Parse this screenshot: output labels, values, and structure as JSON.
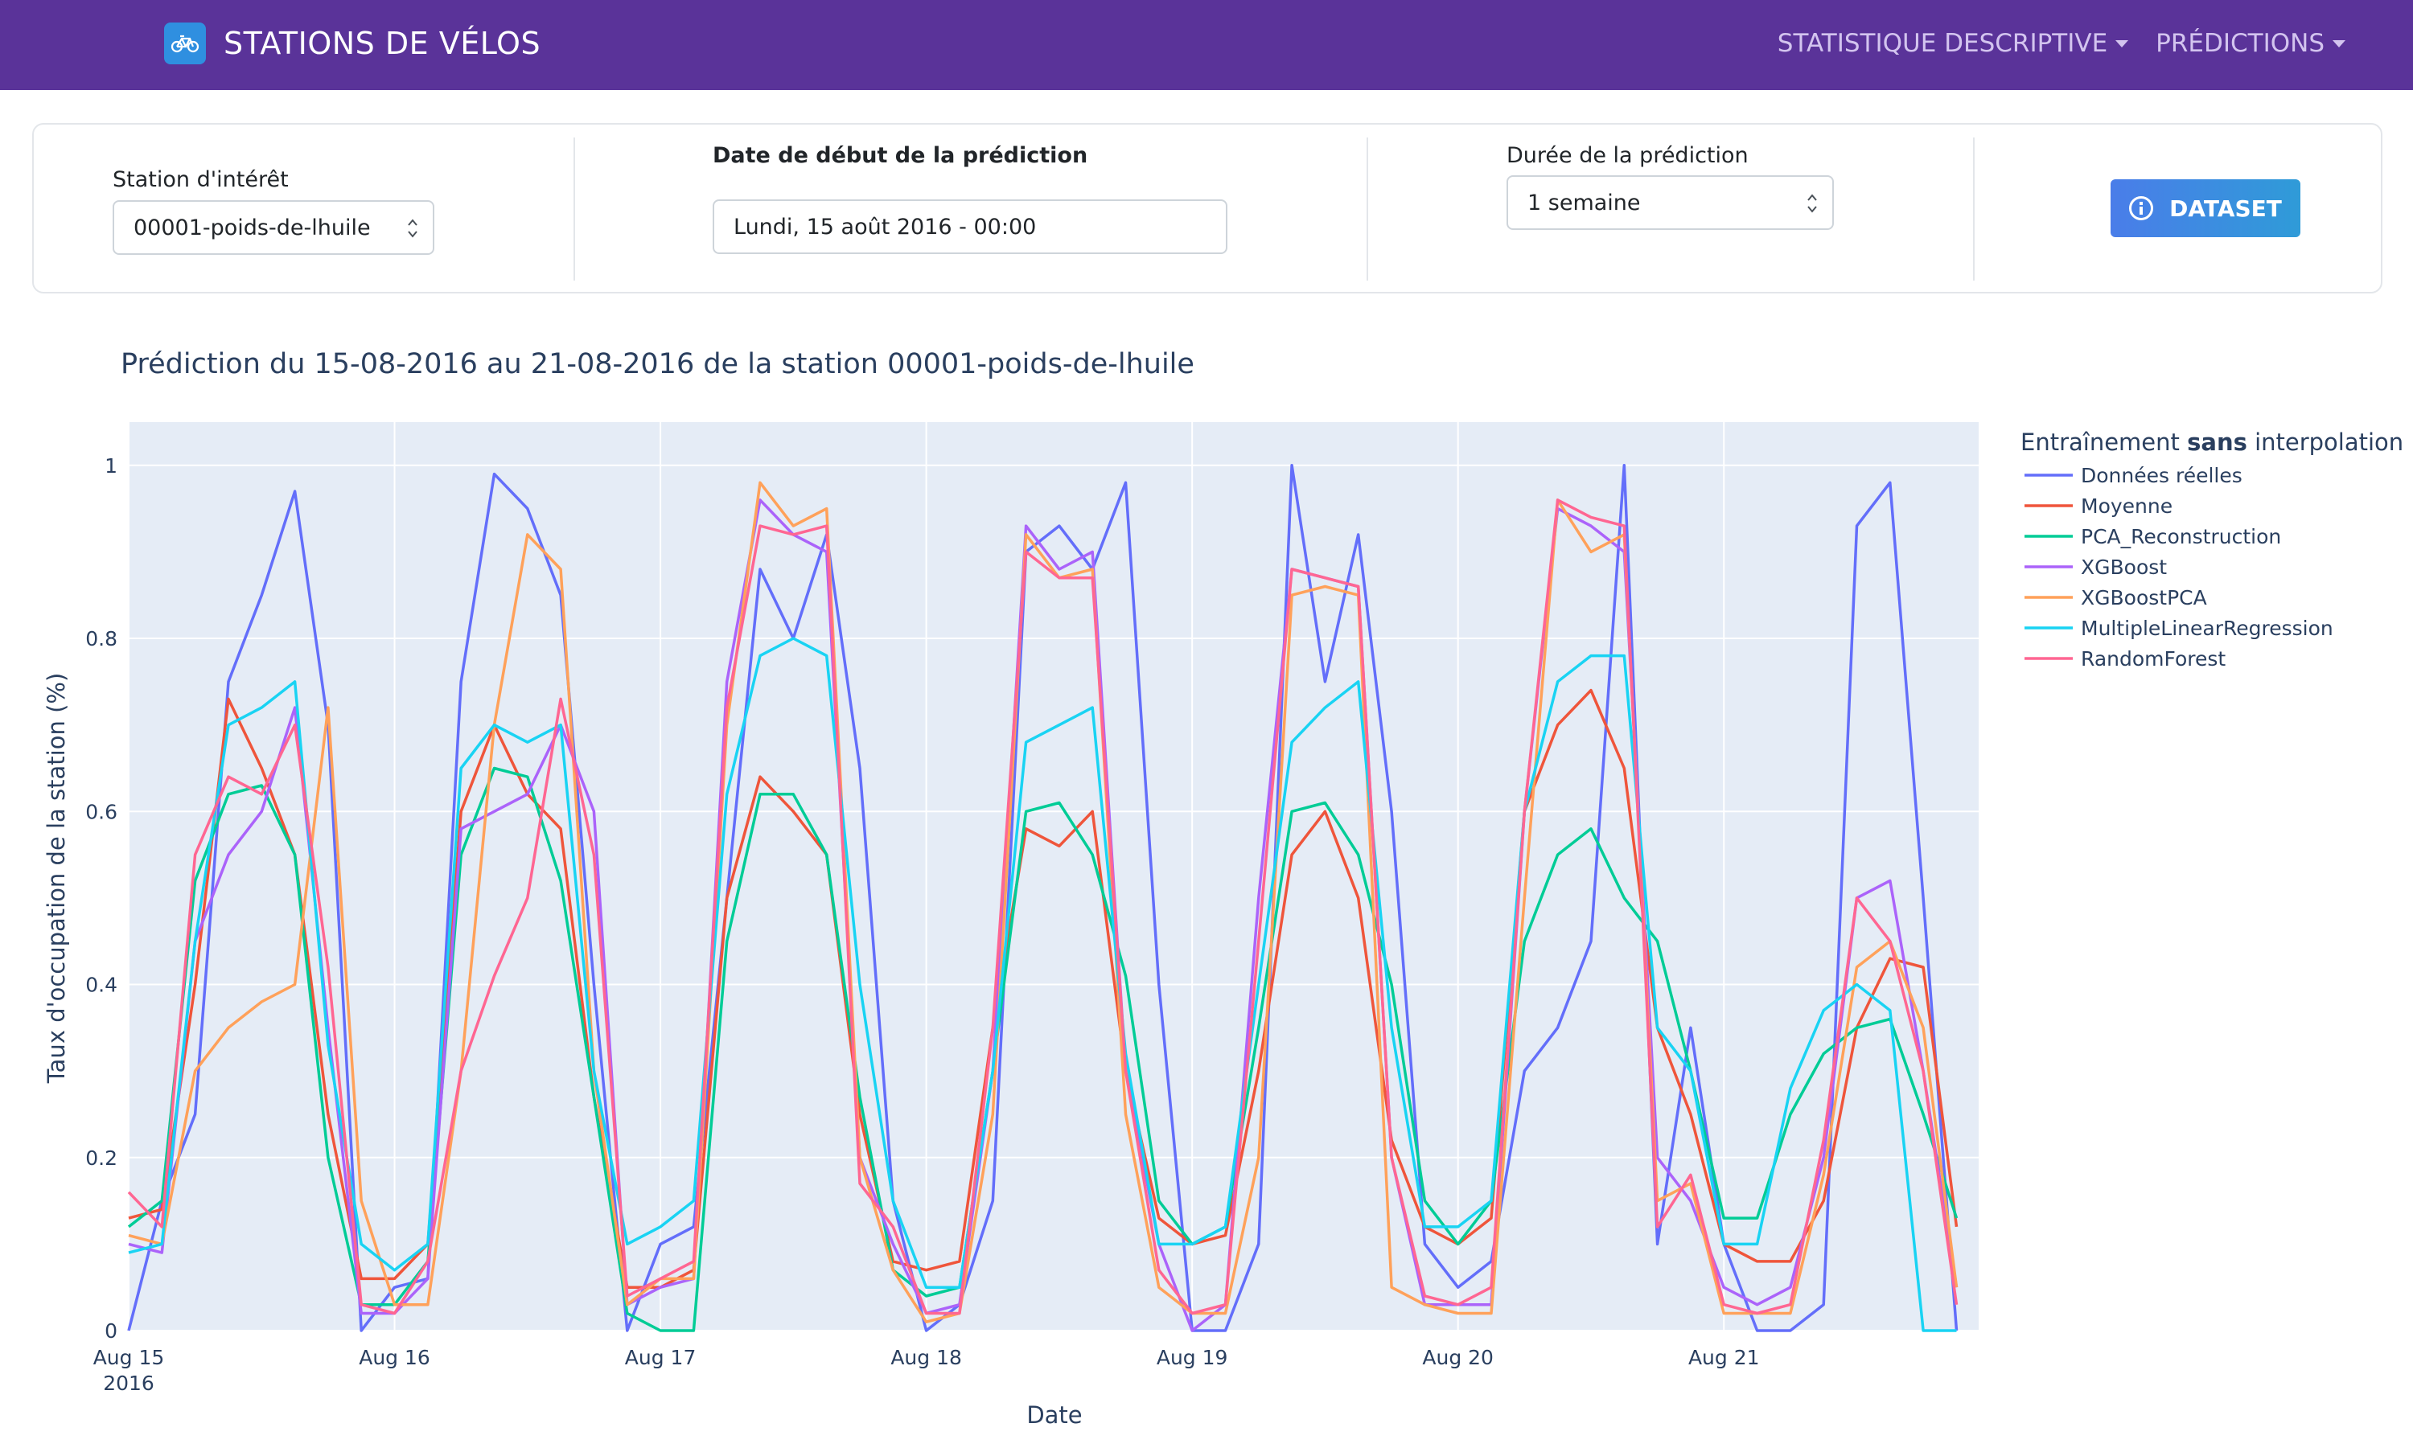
{
  "navbar": {
    "brand_title": "STATIONS DE VÉLOS",
    "brand_icon": "bicycle-icon",
    "menu": [
      {
        "label": "STATISTIQUE DESCRIPTIVE"
      },
      {
        "label": "PRÉDICTIONS"
      }
    ]
  },
  "controls": {
    "station": {
      "label": "Station d'intérêt",
      "value": "00001-poids-de-lhuile"
    },
    "start_date": {
      "label": "Date de début de la prédiction",
      "value": "Lundi, 15 août 2016 - 00:00"
    },
    "duration": {
      "label": "Durée de la prédiction",
      "value": "1 semaine"
    },
    "dataset_button": {
      "label": "DATASET",
      "icon": "info-icon"
    }
  },
  "colors": {
    "navbar": "#5a3399",
    "plot_bg": "#e5ecf6",
    "button": "#3f86e6"
  },
  "chart_data": {
    "type": "line",
    "title": "Prédiction du 15-08-2016 au 21-08-2016 de la station 00001-poids-de-lhuile",
    "xlabel": "Date",
    "ylabel": "Taux d'occupation de la station (%)",
    "ylim": [
      0,
      1.05
    ],
    "xlim": [
      "2016-08-15 00:00",
      "2016-08-21 23:00"
    ],
    "x_ticks": [
      {
        "label": "Aug 15",
        "sublabel": "2016",
        "x": "2016-08-15"
      },
      {
        "label": "Aug 16",
        "x": "2016-08-16"
      },
      {
        "label": "Aug 17",
        "x": "2016-08-17"
      },
      {
        "label": "Aug 18",
        "x": "2016-08-18"
      },
      {
        "label": "Aug 19",
        "x": "2016-08-19"
      },
      {
        "label": "Aug 20",
        "x": "2016-08-20"
      },
      {
        "label": "Aug 21",
        "x": "2016-08-21"
      }
    ],
    "y_ticks": [
      {
        "label": "0",
        "v": 0
      },
      {
        "label": "0.2",
        "v": 0.2
      },
      {
        "label": "0.4",
        "v": 0.4
      },
      {
        "label": "0.6",
        "v": 0.6
      },
      {
        "label": "0.8",
        "v": 0.8
      },
      {
        "label": "1",
        "v": 1
      }
    ],
    "grid": true,
    "legend": {
      "title_prefix": "Entraînement ",
      "title_bold": "sans",
      "title_suffix": " interpolation",
      "placement": "right"
    },
    "x": [
      "2016-08-15 00:00",
      "2016-08-15 03:00",
      "2016-08-15 06:00",
      "2016-08-15 09:00",
      "2016-08-15 12:00",
      "2016-08-15 15:00",
      "2016-08-15 18:00",
      "2016-08-15 21:00",
      "2016-08-16 00:00",
      "2016-08-16 03:00",
      "2016-08-16 06:00",
      "2016-08-16 09:00",
      "2016-08-16 12:00",
      "2016-08-16 15:00",
      "2016-08-16 18:00",
      "2016-08-16 21:00",
      "2016-08-17 00:00",
      "2016-08-17 03:00",
      "2016-08-17 06:00",
      "2016-08-17 09:00",
      "2016-08-17 12:00",
      "2016-08-17 15:00",
      "2016-08-17 18:00",
      "2016-08-17 21:00",
      "2016-08-18 00:00",
      "2016-08-18 03:00",
      "2016-08-18 06:00",
      "2016-08-18 09:00",
      "2016-08-18 12:00",
      "2016-08-18 15:00",
      "2016-08-18 18:00",
      "2016-08-18 21:00",
      "2016-08-19 00:00",
      "2016-08-19 03:00",
      "2016-08-19 06:00",
      "2016-08-19 09:00",
      "2016-08-19 12:00",
      "2016-08-19 15:00",
      "2016-08-19 18:00",
      "2016-08-19 21:00",
      "2016-08-20 00:00",
      "2016-08-20 03:00",
      "2016-08-20 06:00",
      "2016-08-20 09:00",
      "2016-08-20 12:00",
      "2016-08-20 15:00",
      "2016-08-20 18:00",
      "2016-08-20 21:00",
      "2016-08-21 00:00",
      "2016-08-21 03:00",
      "2016-08-21 06:00",
      "2016-08-21 09:00",
      "2016-08-21 12:00",
      "2016-08-21 15:00",
      "2016-08-21 18:00",
      "2016-08-21 21:00"
    ],
    "series": [
      {
        "name": "Données réelles",
        "color": "#636efa",
        "values": [
          0.0,
          0.15,
          0.25,
          0.75,
          0.85,
          0.97,
          0.7,
          0.0,
          0.05,
          0.06,
          0.75,
          0.99,
          0.95,
          0.85,
          0.4,
          0.0,
          0.1,
          0.12,
          0.5,
          0.88,
          0.8,
          0.92,
          0.65,
          0.15,
          0.0,
          0.03,
          0.15,
          0.9,
          0.93,
          0.88,
          0.98,
          0.4,
          0.0,
          0.0,
          0.1,
          1.0,
          0.75,
          0.92,
          0.6,
          0.1,
          0.05,
          0.08,
          0.3,
          0.35,
          0.45,
          1.0,
          0.1,
          0.35,
          0.1,
          0.0,
          0.0,
          0.03,
          0.93,
          0.98,
          0.5,
          0.0
        ]
      },
      {
        "name": "Moyenne",
        "color": "#ef553b",
        "values": [
          0.13,
          0.14,
          0.4,
          0.73,
          0.65,
          0.55,
          0.25,
          0.06,
          0.06,
          0.1,
          0.6,
          0.7,
          0.62,
          0.58,
          0.27,
          0.05,
          0.05,
          0.07,
          0.5,
          0.64,
          0.6,
          0.55,
          0.25,
          0.08,
          0.07,
          0.08,
          0.35,
          0.58,
          0.56,
          0.6,
          0.3,
          0.13,
          0.1,
          0.11,
          0.3,
          0.55,
          0.6,
          0.5,
          0.22,
          0.12,
          0.1,
          0.13,
          0.6,
          0.7,
          0.74,
          0.65,
          0.35,
          0.25,
          0.1,
          0.08,
          0.08,
          0.15,
          0.35,
          0.43,
          0.42,
          0.12
        ]
      },
      {
        "name": "PCA_Reconstruction",
        "color": "#00cc96",
        "values": [
          0.12,
          0.15,
          0.52,
          0.62,
          0.63,
          0.55,
          0.2,
          0.03,
          0.03,
          0.08,
          0.55,
          0.65,
          0.64,
          0.52,
          0.27,
          0.02,
          0.0,
          0.0,
          0.45,
          0.62,
          0.62,
          0.55,
          0.27,
          0.07,
          0.04,
          0.05,
          0.3,
          0.6,
          0.61,
          0.55,
          0.41,
          0.15,
          0.1,
          0.12,
          0.35,
          0.6,
          0.61,
          0.55,
          0.4,
          0.15,
          0.1,
          0.15,
          0.45,
          0.55,
          0.58,
          0.5,
          0.45,
          0.3,
          0.13,
          0.13,
          0.25,
          0.32,
          0.35,
          0.36,
          0.25,
          0.13
        ]
      },
      {
        "name": "XGBoost",
        "color": "#ab63fa",
        "values": [
          0.1,
          0.09,
          0.45,
          0.55,
          0.6,
          0.72,
          0.35,
          0.02,
          0.02,
          0.06,
          0.58,
          0.6,
          0.62,
          0.7,
          0.6,
          0.03,
          0.05,
          0.06,
          0.75,
          0.96,
          0.92,
          0.9,
          0.2,
          0.1,
          0.02,
          0.03,
          0.3,
          0.93,
          0.88,
          0.9,
          0.3,
          0.1,
          0.0,
          0.03,
          0.5,
          0.88,
          0.87,
          0.86,
          0.2,
          0.03,
          0.03,
          0.03,
          0.6,
          0.95,
          0.93,
          0.9,
          0.2,
          0.15,
          0.05,
          0.03,
          0.05,
          0.2,
          0.5,
          0.52,
          0.3,
          0.05
        ]
      },
      {
        "name": "XGBoostPCA",
        "color": "#ffa15a",
        "values": [
          0.11,
          0.1,
          0.3,
          0.35,
          0.38,
          0.4,
          0.72,
          0.15,
          0.03,
          0.03,
          0.3,
          0.7,
          0.92,
          0.88,
          0.3,
          0.03,
          0.06,
          0.06,
          0.7,
          0.98,
          0.93,
          0.95,
          0.2,
          0.07,
          0.01,
          0.02,
          0.25,
          0.92,
          0.87,
          0.88,
          0.25,
          0.05,
          0.02,
          0.02,
          0.2,
          0.85,
          0.86,
          0.85,
          0.05,
          0.03,
          0.02,
          0.02,
          0.5,
          0.96,
          0.9,
          0.92,
          0.15,
          0.17,
          0.02,
          0.02,
          0.02,
          0.18,
          0.42,
          0.45,
          0.35,
          0.05
        ]
      },
      {
        "name": "MultipleLinearRegression",
        "color": "#19d3f3",
        "values": [
          0.09,
          0.1,
          0.45,
          0.7,
          0.72,
          0.75,
          0.33,
          0.1,
          0.07,
          0.1,
          0.65,
          0.7,
          0.68,
          0.7,
          0.3,
          0.1,
          0.12,
          0.15,
          0.62,
          0.78,
          0.8,
          0.78,
          0.4,
          0.15,
          0.05,
          0.05,
          0.3,
          0.68,
          0.7,
          0.72,
          0.32,
          0.1,
          0.1,
          0.12,
          0.4,
          0.68,
          0.72,
          0.75,
          0.35,
          0.12,
          0.12,
          0.15,
          0.6,
          0.75,
          0.78,
          0.78,
          0.35,
          0.3,
          0.1,
          0.1,
          0.28,
          0.37,
          0.4,
          0.37,
          0.0,
          0.0
        ]
      },
      {
        "name": "RandomForest",
        "color": "#ff6692",
        "values": [
          0.16,
          0.12,
          0.55,
          0.64,
          0.62,
          0.7,
          0.42,
          0.03,
          0.02,
          0.08,
          0.3,
          0.41,
          0.5,
          0.73,
          0.55,
          0.04,
          0.06,
          0.08,
          0.72,
          0.93,
          0.92,
          0.93,
          0.17,
          0.12,
          0.02,
          0.02,
          0.35,
          0.9,
          0.87,
          0.87,
          0.3,
          0.07,
          0.02,
          0.03,
          0.45,
          0.88,
          0.87,
          0.86,
          0.2,
          0.04,
          0.03,
          0.05,
          0.6,
          0.96,
          0.94,
          0.93,
          0.12,
          0.18,
          0.03,
          0.02,
          0.03,
          0.22,
          0.5,
          0.45,
          0.3,
          0.03
        ]
      }
    ]
  }
}
